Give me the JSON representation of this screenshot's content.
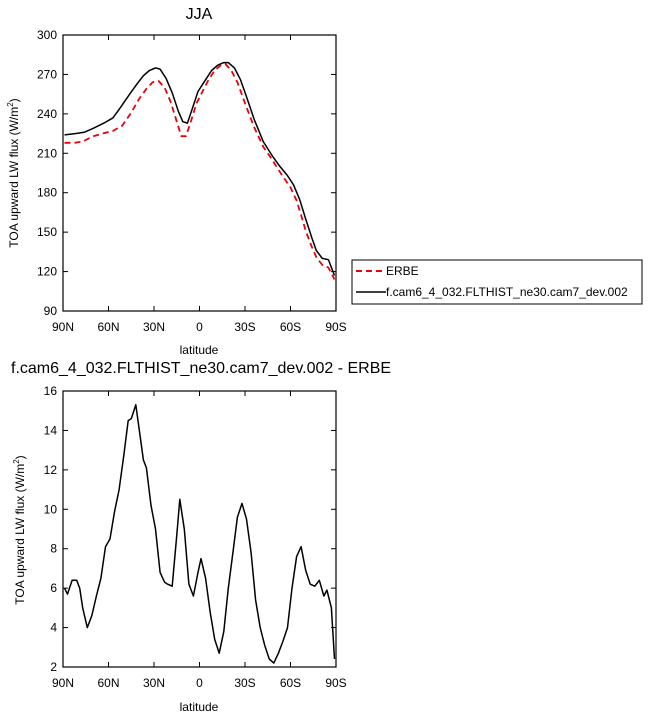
{
  "chart_data": [
    {
      "type": "line",
      "title": "JJA",
      "xlabel": "latitude",
      "ylabel": "TOA upward LW flux (W/m",
      "ylabel_sup": "2",
      "ylabel_tail": ")",
      "xlim": [
        -90,
        90
      ],
      "ylim": [
        90,
        300
      ],
      "x_ticks": [
        -90,
        -60,
        -30,
        0,
        30,
        60,
        90
      ],
      "x_tick_labels": [
        "90N",
        "60N",
        "30N",
        "0",
        "30S",
        "60S",
        "90S"
      ],
      "y_ticks": [
        90,
        120,
        150,
        180,
        210,
        240,
        270,
        300
      ],
      "y_tick_labels": [
        "90",
        "120",
        "150",
        "180",
        "210",
        "240",
        "270",
        "300"
      ],
      "legend_position": "right",
      "series": [
        {
          "name": "ERBE",
          "color": "#e8000b",
          "dash": "dashed",
          "points": [
            [
              -89,
              218
            ],
            [
              -82,
              218
            ],
            [
              -77,
              219
            ],
            [
              -70,
              223
            ],
            [
              -64,
              225
            ],
            [
              -57,
              227
            ],
            [
              -51,
              231
            ],
            [
              -45,
              241
            ],
            [
              -40,
              251
            ],
            [
              -35,
              259
            ],
            [
              -31,
              264
            ],
            [
              -27,
              265
            ],
            [
              -23,
              260
            ],
            [
              -19,
              249
            ],
            [
              -15,
              234
            ],
            [
              -12,
              223
            ],
            [
              -9,
              223
            ],
            [
              -6,
              233
            ],
            [
              -2,
              248
            ],
            [
              2,
              257
            ],
            [
              6,
              266
            ],
            [
              10,
              273
            ],
            [
              14,
              277
            ],
            [
              17,
              278
            ],
            [
              21,
              273
            ],
            [
              25,
              264
            ],
            [
              30,
              248
            ],
            [
              36,
              230
            ],
            [
              42,
              215
            ],
            [
              48,
              205
            ],
            [
              54,
              194
            ],
            [
              60,
              184
            ],
            [
              64,
              174
            ],
            [
              67,
              163
            ],
            [
              70,
              151
            ],
            [
              74,
              139
            ],
            [
              77,
              131
            ],
            [
              81,
              125
            ],
            [
              85,
              123
            ],
            [
              89,
              114
            ]
          ]
        },
        {
          "name": "f.cam6_4_032.FLTHIST_ne30.cam7_dev.002",
          "color": "#000000",
          "dash": "solid",
          "points": [
            [
              -89,
              224
            ],
            [
              -82,
              225
            ],
            [
              -76,
              226
            ],
            [
              -70,
              229
            ],
            [
              -63,
              233
            ],
            [
              -57,
              237
            ],
            [
              -52,
              245
            ],
            [
              -46,
              255
            ],
            [
              -41,
              263
            ],
            [
              -37,
              269
            ],
            [
              -33,
              273
            ],
            [
              -29,
              275
            ],
            [
              -26,
              274
            ],
            [
              -22,
              267
            ],
            [
              -18,
              256
            ],
            [
              -14,
              242
            ],
            [
              -11,
              234
            ],
            [
              -8,
              233
            ],
            [
              -5,
              243
            ],
            [
              -1,
              257
            ],
            [
              4,
              266
            ],
            [
              8,
              273
            ],
            [
              12,
              277
            ],
            [
              16,
              279
            ],
            [
              19,
              279
            ],
            [
              23,
              275
            ],
            [
              27,
              266
            ],
            [
              31,
              253
            ],
            [
              36,
              236
            ],
            [
              42,
              219
            ],
            [
              48,
              208
            ],
            [
              53,
              200
            ],
            [
              58,
              193
            ],
            [
              62,
              186
            ],
            [
              66,
              175
            ],
            [
              70,
              160
            ],
            [
              74,
              146
            ],
            [
              77,
              136
            ],
            [
              81,
              130
            ],
            [
              85,
              129
            ],
            [
              89,
              117
            ]
          ]
        }
      ]
    },
    {
      "type": "line",
      "title": "f.cam6_4_032.FLTHIST_ne30.cam7_dev.002 - ERBE",
      "xlabel": "latitude",
      "ylabel": "TOA upward LW flux (W/m",
      "ylabel_sup": "2",
      "ylabel_tail": ")",
      "xlim": [
        -90,
        90
      ],
      "ylim": [
        2,
        16
      ],
      "x_ticks": [
        -90,
        -60,
        -30,
        0,
        30,
        60,
        90
      ],
      "x_tick_labels": [
        "90N",
        "60N",
        "30N",
        "0",
        "30S",
        "60S",
        "90S"
      ],
      "y_ticks": [
        2,
        4,
        6,
        8,
        10,
        12,
        14,
        16
      ],
      "y_tick_labels": [
        "2",
        "4",
        "6",
        "8",
        "10",
        "12",
        "14",
        "16"
      ],
      "series": [
        {
          "color": "#000000",
          "dash": "solid",
          "points": [
            [
              -89,
              6.0
            ],
            [
              -87,
              5.7
            ],
            [
              -84,
              6.4
            ],
            [
              -81,
              6.4
            ],
            [
              -79,
              6.0
            ],
            [
              -77,
              5.0
            ],
            [
              -74,
              4.0
            ],
            [
              -71,
              4.6
            ],
            [
              -68,
              5.6
            ],
            [
              -65,
              6.5
            ],
            [
              -62,
              8.1
            ],
            [
              -59,
              8.5
            ],
            [
              -56,
              9.9
            ],
            [
              -53,
              11.0
            ],
            [
              -50,
              12.7
            ],
            [
              -47,
              14.5
            ],
            [
              -45,
              14.6
            ],
            [
              -42,
              15.3
            ],
            [
              -40,
              14.2
            ],
            [
              -37,
              12.5
            ],
            [
              -35,
              12.1
            ],
            [
              -32,
              10.2
            ],
            [
              -29,
              9.0
            ],
            [
              -26,
              6.8
            ],
            [
              -23,
              6.3
            ],
            [
              -21,
              6.2
            ],
            [
              -18,
              6.1
            ],
            [
              -15,
              8.7
            ],
            [
              -13,
              10.5
            ],
            [
              -10,
              9.0
            ],
            [
              -7,
              6.2
            ],
            [
              -4,
              5.6
            ],
            [
              -1,
              6.8
            ],
            [
              1,
              7.5
            ],
            [
              4,
              6.5
            ],
            [
              7,
              4.8
            ],
            [
              10,
              3.4
            ],
            [
              13,
              2.7
            ],
            [
              16,
              3.8
            ],
            [
              19,
              6.0
            ],
            [
              22,
              7.8
            ],
            [
              25,
              9.6
            ],
            [
              28,
              10.3
            ],
            [
              31,
              9.5
            ],
            [
              34,
              7.8
            ],
            [
              37,
              5.4
            ],
            [
              40,
              4.0
            ],
            [
              43,
              3.1
            ],
            [
              46,
              2.4
            ],
            [
              49,
              2.2
            ],
            [
              52,
              2.7
            ],
            [
              55,
              3.3
            ],
            [
              58,
              4.0
            ],
            [
              61,
              6.0
            ],
            [
              64,
              7.6
            ],
            [
              67,
              8.1
            ],
            [
              70,
              6.9
            ],
            [
              73,
              6.2
            ],
            [
              76,
              6.1
            ],
            [
              79,
              6.4
            ],
            [
              82,
              5.6
            ],
            [
              84,
              5.9
            ],
            [
              87,
              5.0
            ],
            [
              89,
              2.4
            ]
          ]
        }
      ]
    }
  ]
}
